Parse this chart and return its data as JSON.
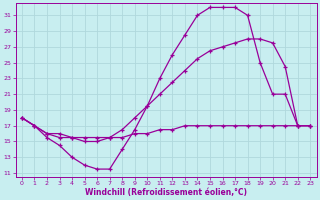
{
  "xlabel": "Windchill (Refroidissement éolien,°C)",
  "bg_color": "#c8eef0",
  "grid_color": "#b0d8dc",
  "line_color": "#990099",
  "xlim": [
    -0.5,
    23.5
  ],
  "ylim": [
    10.5,
    32.5
  ],
  "xticks": [
    0,
    1,
    2,
    3,
    4,
    5,
    6,
    7,
    8,
    9,
    10,
    11,
    12,
    13,
    14,
    15,
    16,
    17,
    18,
    19,
    20,
    21,
    22,
    23
  ],
  "yticks": [
    11,
    13,
    15,
    17,
    19,
    21,
    23,
    25,
    27,
    29,
    31
  ],
  "line1_x": [
    0,
    1,
    2,
    3,
    4,
    5,
    6,
    7,
    8,
    9,
    10,
    11,
    12,
    13,
    14,
    15,
    16,
    17,
    18,
    19,
    20,
    21,
    22,
    23
  ],
  "line1_y": [
    18,
    17,
    15.5,
    14.5,
    13,
    12,
    11.5,
    11.5,
    14,
    16.5,
    19.5,
    23,
    26,
    28.5,
    31,
    32,
    32,
    32,
    31,
    25,
    21,
    21,
    17,
    17
  ],
  "line2_x": [
    0,
    1,
    2,
    3,
    4,
    5,
    6,
    7,
    8,
    9,
    10,
    11,
    12,
    13,
    14,
    15,
    16,
    17,
    18,
    19,
    20,
    21,
    22,
    23
  ],
  "line2_y": [
    18,
    17,
    16,
    16,
    15.5,
    15,
    15,
    15.5,
    16.5,
    18,
    19.5,
    21,
    22.5,
    24,
    25.5,
    26.5,
    27,
    27.5,
    28,
    28,
    27.5,
    24.5,
    17,
    17
  ],
  "line3_x": [
    0,
    1,
    2,
    3,
    4,
    5,
    6,
    7,
    8,
    9,
    10,
    11,
    12,
    13,
    14,
    15,
    16,
    17,
    18,
    19,
    20,
    21,
    22,
    23
  ],
  "line3_y": [
    18,
    17,
    16,
    15.5,
    15.5,
    15.5,
    15.5,
    15.5,
    15.5,
    16,
    16,
    16.5,
    16.5,
    17,
    17,
    17,
    17,
    17,
    17,
    17,
    17,
    17,
    17,
    17
  ]
}
